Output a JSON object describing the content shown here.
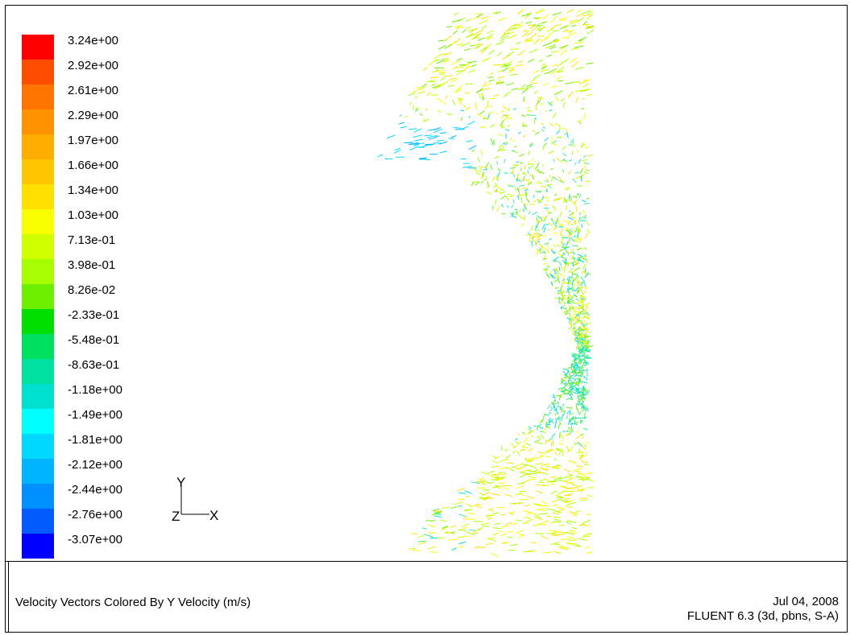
{
  "colorbar": {
    "labels": [
      "3.24e+00",
      "2.92e+00",
      "2.61e+00",
      "2.29e+00",
      "1.97e+00",
      "1.66e+00",
      "1.34e+00",
      "1.03e+00",
      "7.13e-01",
      "3.98e-01",
      "8.26e-02",
      "-2.33e-01",
      "-5.48e-01",
      "-8.63e-01",
      "-1.18e+00",
      "-1.49e+00",
      "-1.81e+00",
      "-2.12e+00",
      "-2.44e+00",
      "-2.76e+00",
      "-3.07e+00"
    ],
    "colors": [
      "#ff0000",
      "#ff4d00",
      "#ff7400",
      "#ff9200",
      "#ffad00",
      "#ffc600",
      "#ffe000",
      "#f9ff00",
      "#d0ff00",
      "#a6ff00",
      "#6cf000",
      "#00e000",
      "#00e060",
      "#00e0a0",
      "#00e0d0",
      "#00ffff",
      "#00d8ff",
      "#00b4ff",
      "#0090ff",
      "#005cff",
      "#0000ff"
    ]
  },
  "axes": {
    "y_label": "Y",
    "z_label": "Z",
    "x_label": "X"
  },
  "caption": "Velocity Vectors Colored By Y Velocity (m/s)",
  "meta": {
    "date": "Jul 04, 2008",
    "version": "FLUENT 6.3 (3d, pbns, S-A)"
  },
  "plot": {
    "arrow_colors": [
      "#00e0d0",
      "#40e8b0",
      "#6cf000",
      "#a6ff00",
      "#d0ff00",
      "#f9ff00",
      "#ffe000",
      "#00d8ff",
      "#00b4ff",
      "#00e000"
    ]
  }
}
